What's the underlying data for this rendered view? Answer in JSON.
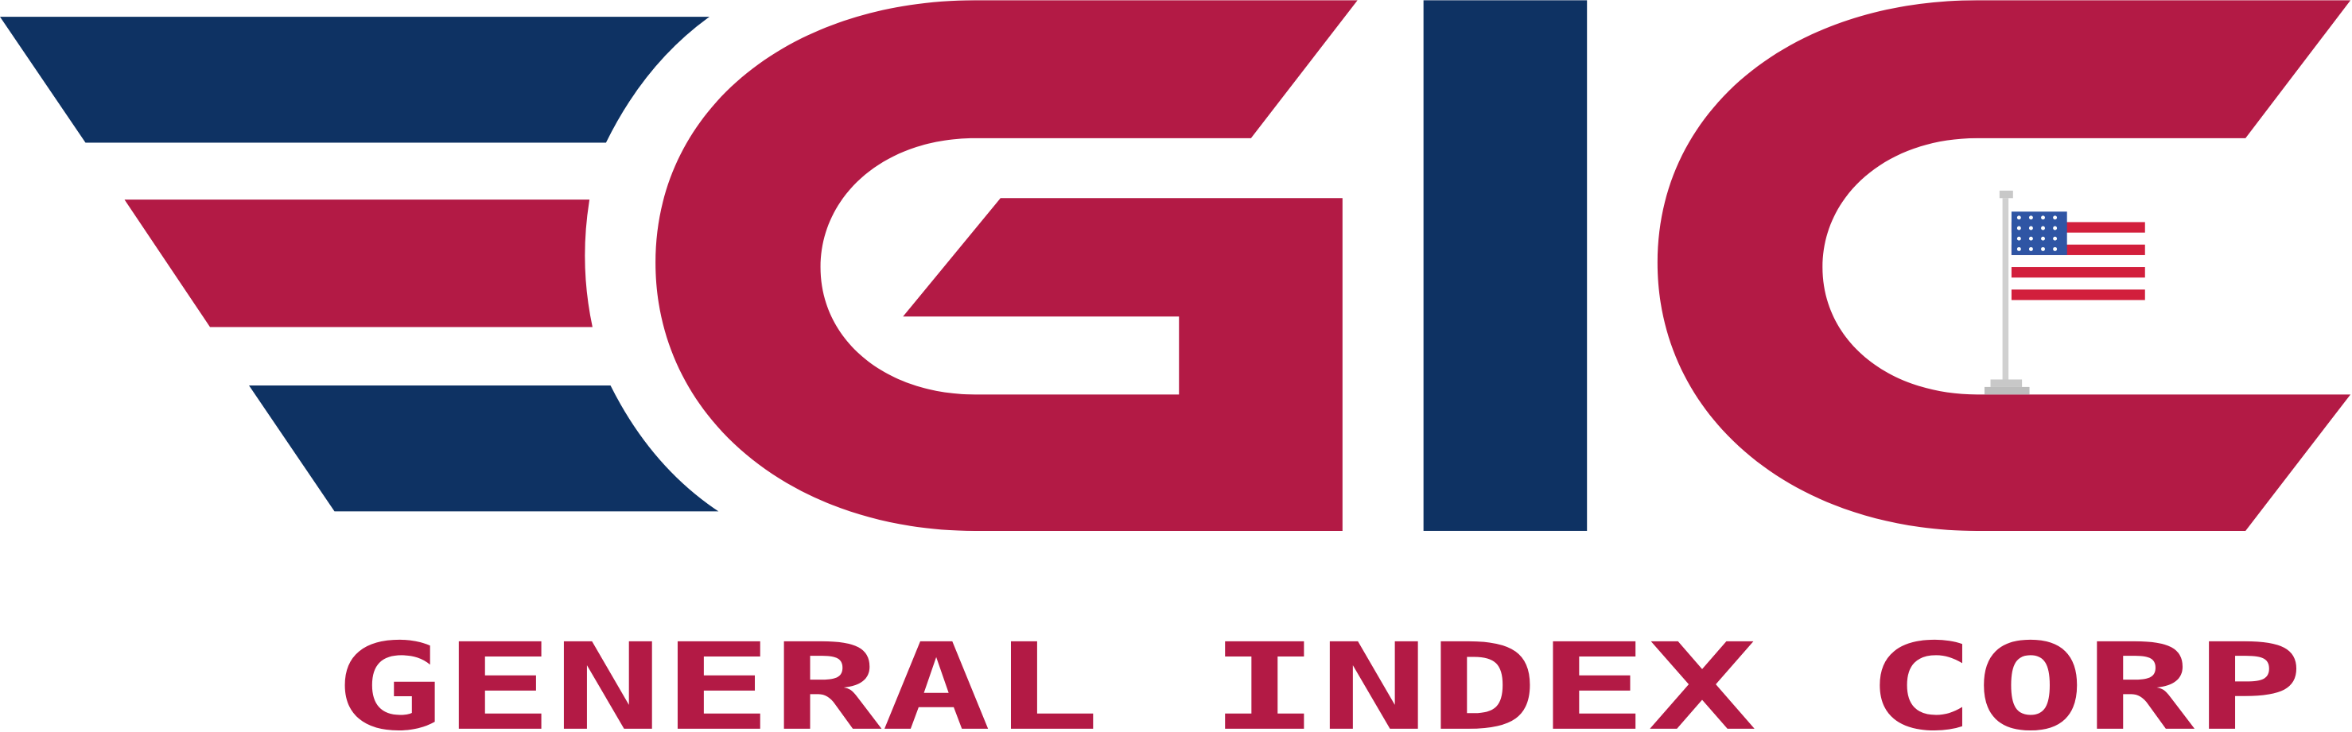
{
  "logo": {
    "tagline": "GENERAL INDEX CORP"
  }
}
